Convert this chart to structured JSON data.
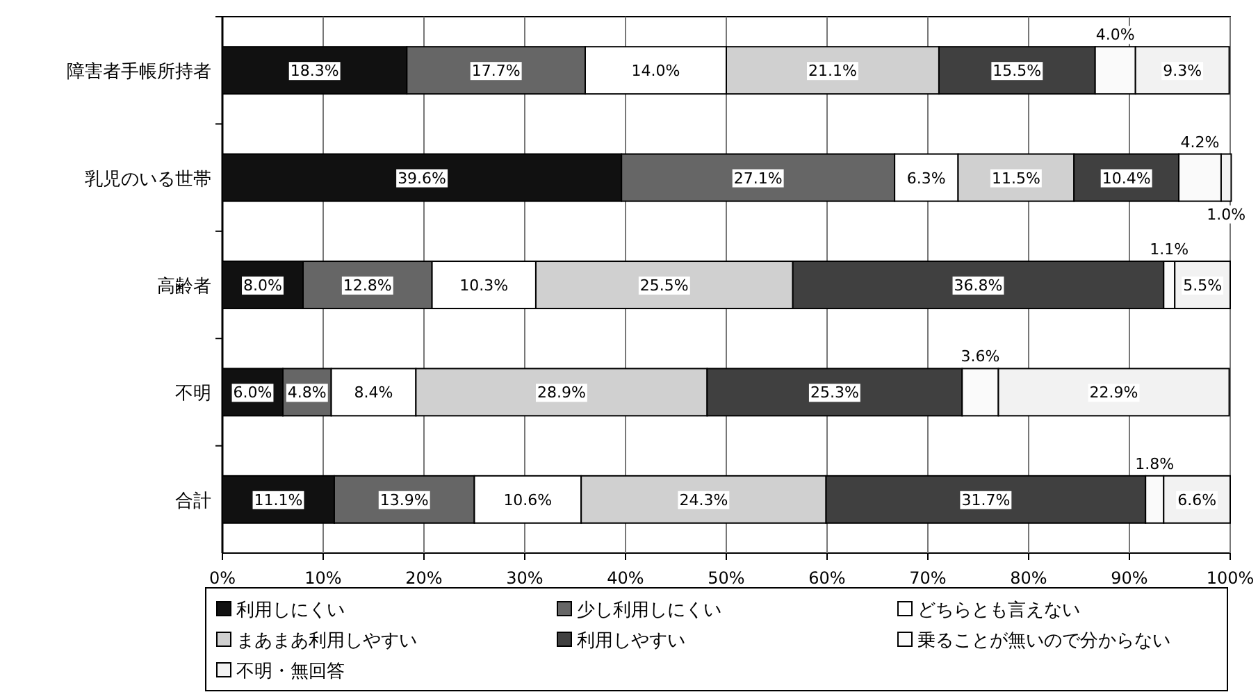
{
  "chart_data": {
    "type": "bar",
    "orientation": "horizontal",
    "stacked": true,
    "grid": "x",
    "legend": "bottom",
    "categories": [
      "障害者手帳所持者",
      "乳児のいる世帯",
      "高齢者",
      "不明",
      "合計"
    ],
    "series": [
      {
        "name": "利用しにくい",
        "color": "#111111",
        "values": [
          18.3,
          39.6,
          8.0,
          6.0,
          11.1
        ],
        "value_labels": [
          "18.3%",
          "39.6%",
          "8.0%",
          "6.0%",
          "11.1%"
        ]
      },
      {
        "name": "少し利用しにくい",
        "color": "#666666",
        "values": [
          17.7,
          27.1,
          12.8,
          4.8,
          13.9
        ],
        "value_labels": [
          "17.7%",
          "27.1%",
          "12.8%",
          "4.8%",
          "13.9%"
        ]
      },
      {
        "name": "どちらとも言えない",
        "color": "#ffffff",
        "values": [
          14.0,
          6.3,
          10.3,
          8.4,
          10.6
        ],
        "value_labels": [
          "14.0%",
          "6.3%",
          "10.3%",
          "8.4%",
          "10.6%"
        ]
      },
      {
        "name": "まあまあ利用しやすい",
        "color": "#d0d0d0",
        "values": [
          21.1,
          11.5,
          25.5,
          28.9,
          24.3
        ],
        "value_labels": [
          "21.1%",
          "11.5%",
          "25.5%",
          "28.9%",
          "24.3%"
        ]
      },
      {
        "name": "利用しやすい",
        "color": "#404040",
        "values": [
          15.5,
          10.4,
          36.8,
          25.3,
          31.7
        ],
        "value_labels": [
          "15.5%",
          "10.4%",
          "36.8%",
          "25.3%",
          "31.7%"
        ]
      },
      {
        "name": "乗ることが無いので分からない",
        "color": "#fafafa",
        "values": [
          4.0,
          4.2,
          1.1,
          3.6,
          1.8
        ],
        "value_labels": [
          "4.0%",
          "4.2%",
          "1.1%",
          "3.6%",
          "1.8%"
        ]
      },
      {
        "name": "不明・無回答",
        "color": "#f2f2f2",
        "values": [
          9.3,
          1.0,
          5.5,
          22.9,
          6.6
        ],
        "value_labels": [
          "9.3%",
          "1.0%",
          "5.5%",
          "22.9%",
          "6.6%"
        ]
      }
    ],
    "xlim": [
      0,
      100
    ],
    "xticks": [
      {
        "value": 0,
        "label": "0%"
      },
      {
        "value": 10,
        "label": "10%"
      },
      {
        "value": 20,
        "label": "20%"
      },
      {
        "value": 30,
        "label": "30%"
      },
      {
        "value": 40,
        "label": "40%"
      },
      {
        "value": 50,
        "label": "50%"
      },
      {
        "value": 60,
        "label": "60%"
      },
      {
        "value": 70,
        "label": "70%"
      },
      {
        "value": 80,
        "label": "80%"
      },
      {
        "value": 90,
        "label": "90%"
      },
      {
        "value": 100,
        "label": "100%"
      }
    ]
  }
}
